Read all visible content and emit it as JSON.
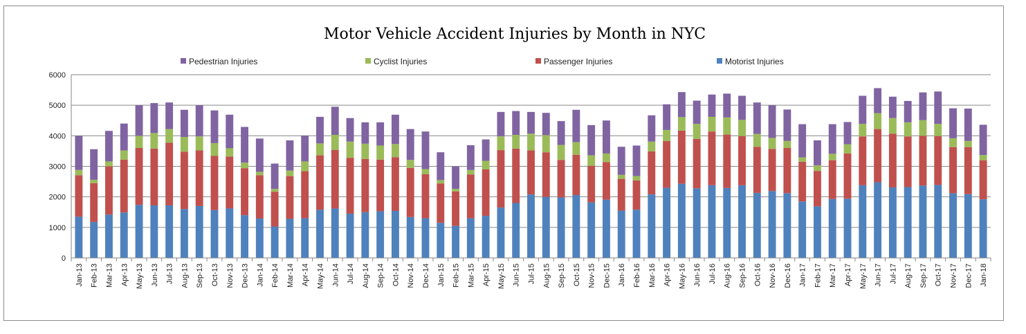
{
  "chart_data": {
    "type": "bar",
    "stacked": true,
    "title": "Motor Vehicle Accident Injuries by Month in NYC",
    "xlabel": "",
    "ylabel": "",
    "ylim": [
      0,
      6000
    ],
    "yticks": [
      0,
      1000,
      2000,
      3000,
      4000,
      5000,
      6000
    ],
    "grid": true,
    "legend_position": "top",
    "categories": [
      "Jan-13",
      "Feb-13",
      "Mar-13",
      "Apr-13",
      "May-13",
      "Jun-13",
      "Jul-13",
      "Aug-13",
      "Sep-13",
      "Oct-13",
      "Nov-13",
      "Dec-13",
      "Jan-14",
      "Feb-14",
      "Mar-14",
      "Apr-14",
      "May-14",
      "Jun-14",
      "Jul-14",
      "Aug-14",
      "Sep-14",
      "Oct-14",
      "Nov-14",
      "Dec-14",
      "Jan-15",
      "Feb-15",
      "Mar-15",
      "Apr-15",
      "May-15",
      "Jun-15",
      "Jul-15",
      "Aug-15",
      "Sep-15",
      "Oct-15",
      "Nov-15",
      "Dec-15",
      "Jan-16",
      "Feb-16",
      "Mar-16",
      "Apr-16",
      "May-16",
      "Jun-16",
      "Jul-16",
      "Aug-16",
      "Sep-16",
      "Oct-16",
      "Nov-16",
      "Dec-16",
      "Jan-17",
      "Feb-17",
      "Mar-17",
      "Apr-17",
      "May-17",
      "Jun-17",
      "Jul-17",
      "Aug-17",
      "Sep-17",
      "Oct-17",
      "Nov-17",
      "Dec-17",
      "Jan-18"
    ],
    "series": [
      {
        "name": "Motorist Injuries",
        "color": "#4f81bd",
        "values": [
          1350,
          1180,
          1420,
          1490,
          1740,
          1720,
          1720,
          1600,
          1700,
          1570,
          1620,
          1400,
          1290,
          1030,
          1280,
          1300,
          1580,
          1620,
          1450,
          1500,
          1530,
          1540,
          1340,
          1300,
          1150,
          1050,
          1300,
          1380,
          1650,
          1800,
          2080,
          2000,
          1980,
          2060,
          1820,
          1910,
          1550,
          1580,
          2080,
          2300,
          2430,
          2280,
          2380,
          2290,
          2380,
          2130,
          2190,
          2120,
          1850,
          1690,
          1930,
          1940,
          2380,
          2480,
          2310,
          2320,
          2370,
          2390,
          2120,
          2090,
          1920
        ]
      },
      {
        "name": "Passenger Injuries",
        "color": "#c0504d",
        "values": [
          1360,
          1270,
          1580,
          1730,
          1860,
          1860,
          2050,
          1880,
          1820,
          1770,
          1700,
          1540,
          1420,
          1140,
          1400,
          1540,
          1780,
          1920,
          1830,
          1740,
          1690,
          1760,
          1610,
          1440,
          1290,
          1130,
          1430,
          1520,
          1880,
          1780,
          1440,
          1460,
          1230,
          1320,
          1200,
          1230,
          1040,
          960,
          1410,
          1530,
          1740,
          1620,
          1760,
          1750,
          1610,
          1510,
          1380,
          1480,
          1300,
          1160,
          1270,
          1480,
          1600,
          1740,
          1760,
          1660,
          1630,
          1600,
          1510,
          1540,
          1280
        ]
      },
      {
        "name": "Cyclist Injuries",
        "color": "#9bbb59",
        "values": [
          170,
          110,
          160,
          300,
          400,
          510,
          450,
          480,
          460,
          420,
          270,
          180,
          110,
          90,
          180,
          320,
          390,
          490,
          530,
          500,
          460,
          430,
          260,
          170,
          110,
          80,
          150,
          280,
          450,
          450,
          550,
          560,
          490,
          410,
          340,
          280,
          130,
          140,
          320,
          360,
          440,
          490,
          480,
          560,
          530,
          420,
          360,
          230,
          140,
          180,
          210,
          300,
          410,
          520,
          510,
          460,
          510,
          400,
          290,
          200,
          170
        ]
      },
      {
        "name": "Pedestrian Injuries",
        "color": "#8064a2",
        "values": [
          1120,
          1000,
          1000,
          880,
          1000,
          980,
          870,
          890,
          1020,
          1070,
          1100,
          1170,
          1090,
          830,
          990,
          850,
          870,
          920,
          770,
          700,
          760,
          960,
          1010,
          1230,
          910,
          730,
          810,
          700,
          800,
          780,
          710,
          730,
          780,
          1060,
          990,
          1080,
          920,
          1000,
          860,
          840,
          820,
          760,
          730,
          780,
          790,
          1030,
          1070,
          1030,
          1090,
          820,
          970,
          730,
          920,
          820,
          700,
          700,
          910,
          1060,
          980,
          1060,
          990
        ]
      }
    ]
  }
}
